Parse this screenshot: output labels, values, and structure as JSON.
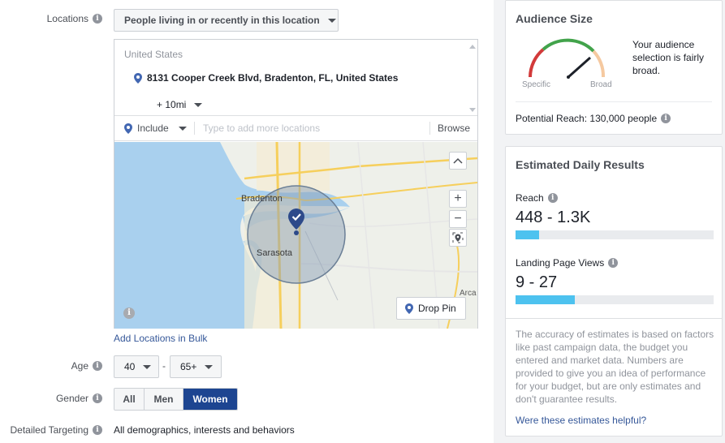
{
  "targeting": {
    "locations": {
      "label": "Locations",
      "mode_dropdown": "People living in or recently in this location",
      "country": "United States",
      "address": "8131 Cooper Creek Blvd, Bradenton, FL, United States",
      "radius": "+ 10mi",
      "include_label": "Include",
      "input_placeholder": "Type to add more locations",
      "browse_label": "Browse",
      "map": {
        "city_bradenton": "Bradenton",
        "city_sarasota": "Sarasota",
        "city_arcadia": "Arca",
        "drop_pin_label": "Drop Pin",
        "zoom_in": "+",
        "zoom_out": "−",
        "collapse": "^"
      },
      "bulk_link": "Add Locations in Bulk"
    },
    "age": {
      "label": "Age",
      "min": "40",
      "separator": "-",
      "max": "65+"
    },
    "gender": {
      "label": "Gender",
      "options": [
        "All",
        "Men",
        "Women"
      ],
      "selected": "Women"
    },
    "detailed": {
      "label": "Detailed Targeting",
      "value": "All demographics, interests and behaviors"
    }
  },
  "audience_size": {
    "title": "Audience Size",
    "gauge_left": "Specific",
    "gauge_right": "Broad",
    "description": "Your audience selection is fairly broad.",
    "potential_reach": "Potential Reach: 130,000 people"
  },
  "estimated_results": {
    "title": "Estimated Daily Results",
    "reach_label": "Reach",
    "reach_value": "448 - 1.3K",
    "reach_fill": 0.12,
    "lpv_label": "Landing Page Views",
    "lpv_value": "9 - 27",
    "lpv_fill": 0.3,
    "disclaimer": "The accuracy of estimates is based on factors like past campaign data, the budget you entered and market data. Numbers are provided to give you an idea of performance for your budget, but are only estimates and don't guarantee results.",
    "helpful_link": "Were these estimates helpful?"
  },
  "colors": {
    "selected_gender": "#1d4591",
    "link": "#365899",
    "bar_fill": "#4dc2ef"
  },
  "icons": {
    "info": "info-icon",
    "pin": "location-pin-icon",
    "caret": "caret-down-icon"
  }
}
